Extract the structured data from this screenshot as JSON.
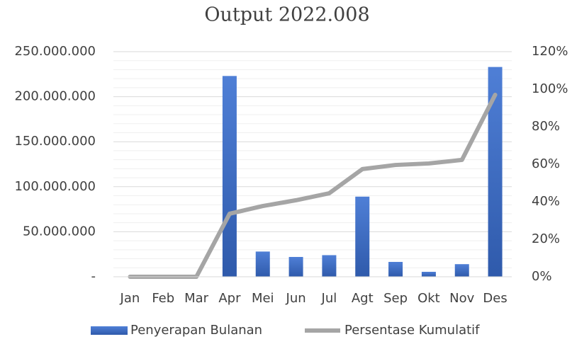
{
  "chart_data": {
    "type": "bar_line",
    "title": "Output 2022.008",
    "categories": [
      "Jan",
      "Feb",
      "Mar",
      "Apr",
      "Mei",
      "Jun",
      "Jul",
      "Agt",
      "Sep",
      "Okt",
      "Nov",
      "Des"
    ],
    "series": [
      {
        "name": "Penyerapan Bulanan",
        "type": "bar",
        "color": "#4472c4",
        "values": [
          0,
          0,
          0,
          223000000,
          28000000,
          22000000,
          24000000,
          89000000,
          16500000,
          5500000,
          14000000,
          233000000
        ]
      },
      {
        "name": "Persentase Kumulatif",
        "type": "line",
        "axis": "y2",
        "color": "#a5a5a5",
        "values": [
          0,
          0,
          0,
          33.6,
          37.7,
          40.8,
          44.5,
          57.4,
          59.6,
          60.4,
          62.3,
          97
        ]
      }
    ],
    "ylim": [
      0,
      250000000
    ],
    "yticks": [
      {
        "value": 0,
        "label": "-"
      },
      {
        "value": 50000000,
        "label": "50.000.000"
      },
      {
        "value": 100000000,
        "label": "100.000.000"
      },
      {
        "value": 150000000,
        "label": "150.000.000"
      },
      {
        "value": 200000000,
        "label": "200.000.000"
      },
      {
        "value": 250000000,
        "label": "250.000.000"
      }
    ],
    "minor_yticks": [
      10000000,
      20000000,
      30000000,
      40000000,
      60000000,
      70000000,
      80000000,
      90000000,
      110000000,
      120000000,
      130000000,
      140000000,
      160000000,
      170000000,
      180000000,
      190000000,
      210000000,
      220000000,
      230000000,
      240000000
    ],
    "y2lim": [
      0,
      120
    ],
    "y2ticks": [
      {
        "value": 0,
        "label": "0%"
      },
      {
        "value": 20,
        "label": "20%"
      },
      {
        "value": 40,
        "label": "40%"
      },
      {
        "value": 60,
        "label": "60%"
      },
      {
        "value": 80,
        "label": "80%"
      },
      {
        "value": 100,
        "label": "100%"
      },
      {
        "value": 120,
        "label": "120%"
      }
    ],
    "grid": true,
    "legend": "bottom"
  }
}
